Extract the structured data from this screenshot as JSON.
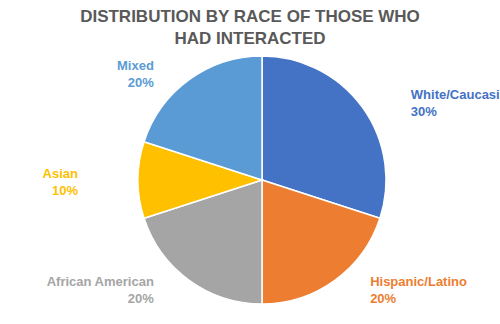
{
  "chart_data": {
    "type": "pie",
    "title": "DISTRIBUTION BY RACE OF THOSE WHO HAD INTERACTED",
    "categories": [
      "White/Caucasian",
      "Hispanic/Latino",
      "African American",
      "Asian",
      "Mixed"
    ],
    "values": [
      30,
      20,
      20,
      10,
      20
    ],
    "value_labels": [
      "30%",
      "20%",
      "20%",
      "10%",
      "20%"
    ],
    "colors": [
      "#4472c4",
      "#ed7d31",
      "#a5a5a5",
      "#ffc000",
      "#5b9bd5"
    ],
    "data_labels": true
  }
}
